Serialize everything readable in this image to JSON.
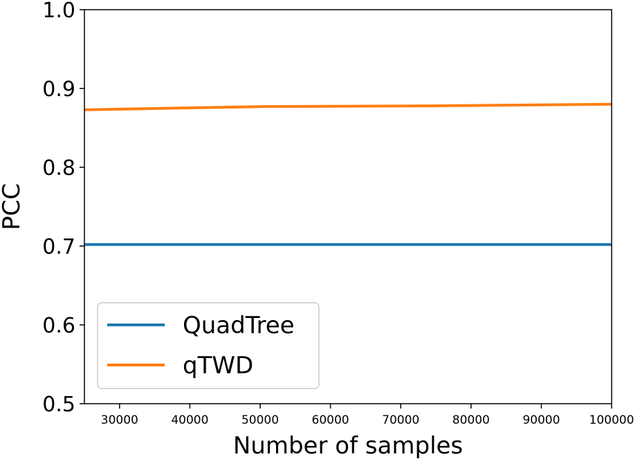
{
  "chart_data": {
    "type": "line",
    "title": "",
    "xlabel": "Number of samples",
    "ylabel": "PCC",
    "xlim": [
      25000,
      100000
    ],
    "ylim": [
      0.5,
      1.0
    ],
    "xticks": [
      30000,
      40000,
      50000,
      60000,
      70000,
      80000,
      90000,
      100000
    ],
    "xtick_labels": [
      "30000",
      "40000",
      "50000",
      "60000",
      "70000",
      "80000",
      "90000",
      "100000"
    ],
    "yticks": [
      0.5,
      0.6,
      0.7,
      0.8,
      0.9,
      1.0
    ],
    "ytick_labels": [
      "0.5",
      "0.6",
      "0.7",
      "0.8",
      "0.9",
      "1.0"
    ],
    "grid": false,
    "legend_position": "lower-left",
    "series": [
      {
        "name": "QuadTree",
        "color": "#1f77b4",
        "x": [
          25000,
          50000,
          75000,
          100000
        ],
        "y": [
          0.702,
          0.702,
          0.702,
          0.702
        ]
      },
      {
        "name": "qTWD",
        "color": "#ff7f0e",
        "x": [
          25000,
          50000,
          75000,
          100000
        ],
        "y": [
          0.873,
          0.877,
          0.878,
          0.88
        ]
      }
    ]
  }
}
